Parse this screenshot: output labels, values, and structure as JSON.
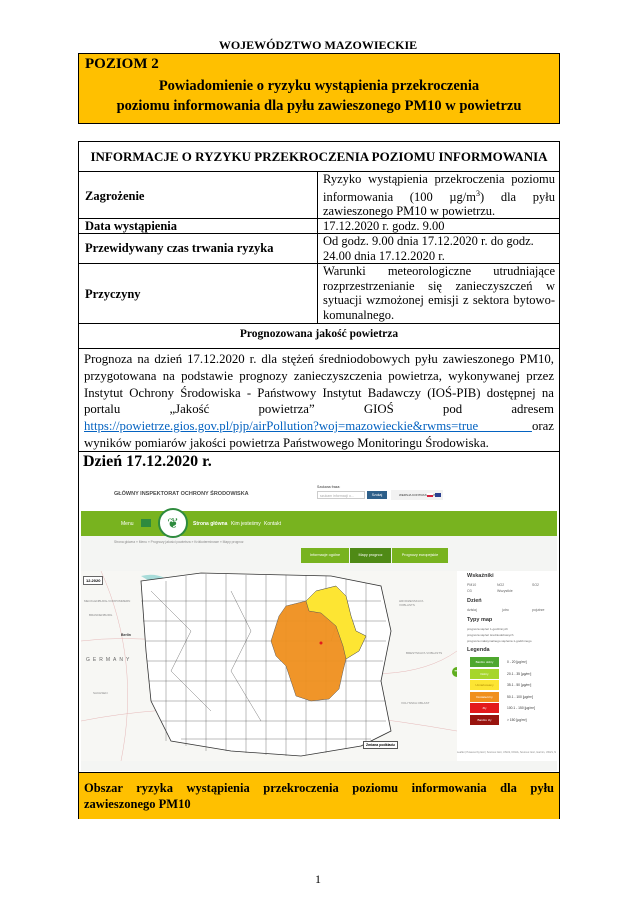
{
  "header": {
    "voivodeship": "WOJEWÓDZTWO MAZOWIECKIE"
  },
  "level_box": {
    "level": "POZIOM 2",
    "title_line1": "Powiadomienie o ryzyku wystąpienia przekroczenia",
    "title_line2": "poziomu informowania dla pyłu zawieszonego PM10 w powietrzu",
    "color": "#FFC000"
  },
  "info_table": {
    "header": "INFORMACJE O RYZYKU PRZEKROCZENIA POZIOMU INFORMOWANIA",
    "rows": [
      {
        "label": "Zagrożenie",
        "value_pre": "Ryzyko wystąpienia przekroczenia poziomu informowania (100 µg/m",
        "value_sup": "3",
        "value_post": ") dla pyłu zawieszonego PM10 w powietrzu."
      },
      {
        "label": "Data wystąpienia",
        "value": "17.12.2020 r. godz. 9.00"
      },
      {
        "label": "Przewidywany czas trwania ryzyka",
        "value": "Od godz. 9.00 dnia 17.12.2020 r. do godz. 24.00 dnia 17.12.2020 r."
      },
      {
        "label": "Przyczyny",
        "value": "Warunki meteorologiczne utrudniające rozprzestrzenianie się zanieczyszczeń w sytuacji wzmożonej emisji z sektora bytowo-komunalnego."
      }
    ]
  },
  "forecast": {
    "header": "Prognozowana jakość powietrza",
    "text_before_link": "Prognoza na dzień 17.12.2020 r. dla stężeń średniodobowych pyłu zawieszonego PM10, przygotowana na podstawie prognozy zanieczyszczenia powietrza, wykonywanej przez Instytut Ochrony Środowiska - Państwowy Instytut Badawczy (IOŚ-PIB) dostępnej na portalu „Jakość powietrza” GIOŚ pod adresem ",
    "link": "https://powietrze.gios.gov.pl/pjp/airPollution?woj=mazowieckie&rwms=true ",
    "text_after_link": "oraz wyników pomiarów jakości powietrza Państwowego Monitoringu Środowiska."
  },
  "day_title": "Dzień 17.12.2020 r.",
  "screenshot": {
    "org_name": "GŁÓWNY INSPEKTORAT OCHRONY ŚRODOWISKA",
    "search_label": "Szukana fraza:",
    "search_placeholder": "szukam informacji o...",
    "search_button": "Szukaj",
    "contrast_label": "WERSJA KONTRASTOWA",
    "nav": {
      "menu": "Menu",
      "home": "Strona główna",
      "about": "Kim jesteśmy",
      "contact": "Kontakt"
    },
    "breadcrumb": "Strona główna  »  Menu  »  Prognozy jakości powietrza  »  Krótkoterminowe  »  Mapy prognoz",
    "tabs": [
      "Informacje ogólne",
      "Mapy prognoz",
      "Prognozy europejskie"
    ],
    "map_date": "12.2020",
    "map_labels": [
      "MECKLENBURG-VORPOMMERN",
      "BRANDENBURG",
      "Berlin",
      "GERMANY",
      "SACHSEN",
      "HRODZENSKAYA VOBLASTS",
      "BRESTSKAYA VOBLASTS",
      "VOLYNSKA OBLAST"
    ],
    "change_basemap": "Zmiana podkładu",
    "attribution": "Leaflet | Powered by Esri | Sources: Esri, USGS, NOAA, Sources: Esri, Garmin, USGS, N",
    "panel": {
      "indicators_title": "Wskaźniki",
      "indicators": [
        "PM10",
        "NO2",
        "SO2",
        "O3",
        "Wszystkie"
      ],
      "day_title": "Dzień",
      "days": [
        "dzisiaj",
        "jutro",
        "pojutrze"
      ],
      "map_types_title": "Typy map",
      "map_types": [
        "prognoza stężeń 1-godzinnych",
        "prognoza stężeń średniodobowych",
        "prognoza maksymalnego stężenia 1-godzinnego"
      ],
      "legend_title": "Legenda",
      "legend": [
        {
          "label": "Bardzo dobry",
          "range": "0 - 20 [µg/m³]",
          "color": "#4ea72e"
        },
        {
          "label": "Dobry",
          "range": "20.1 - 35 [µg/m³]",
          "color": "#a6d62b"
        },
        {
          "label": "Umiarkowany",
          "range": "35.1 - 50 [µg/m³]",
          "color": "#fde533"
        },
        {
          "label": "Dostateczny",
          "range": "50.1 - 100 [µg/m³]",
          "color": "#f0901e"
        },
        {
          "label": "Zły",
          "range": "100.1 - 150 [µg/m³]",
          "color": "#e31a1c"
        },
        {
          "label": "Bardzo zły",
          "range": "> 150 [µg/m³]",
          "color": "#99140f"
        }
      ]
    }
  },
  "risk_area": "Obszar ryzyka wystąpienia przekroczenia poziomu informowania dla pyłu zawieszonego PM10",
  "page_number": "1"
}
